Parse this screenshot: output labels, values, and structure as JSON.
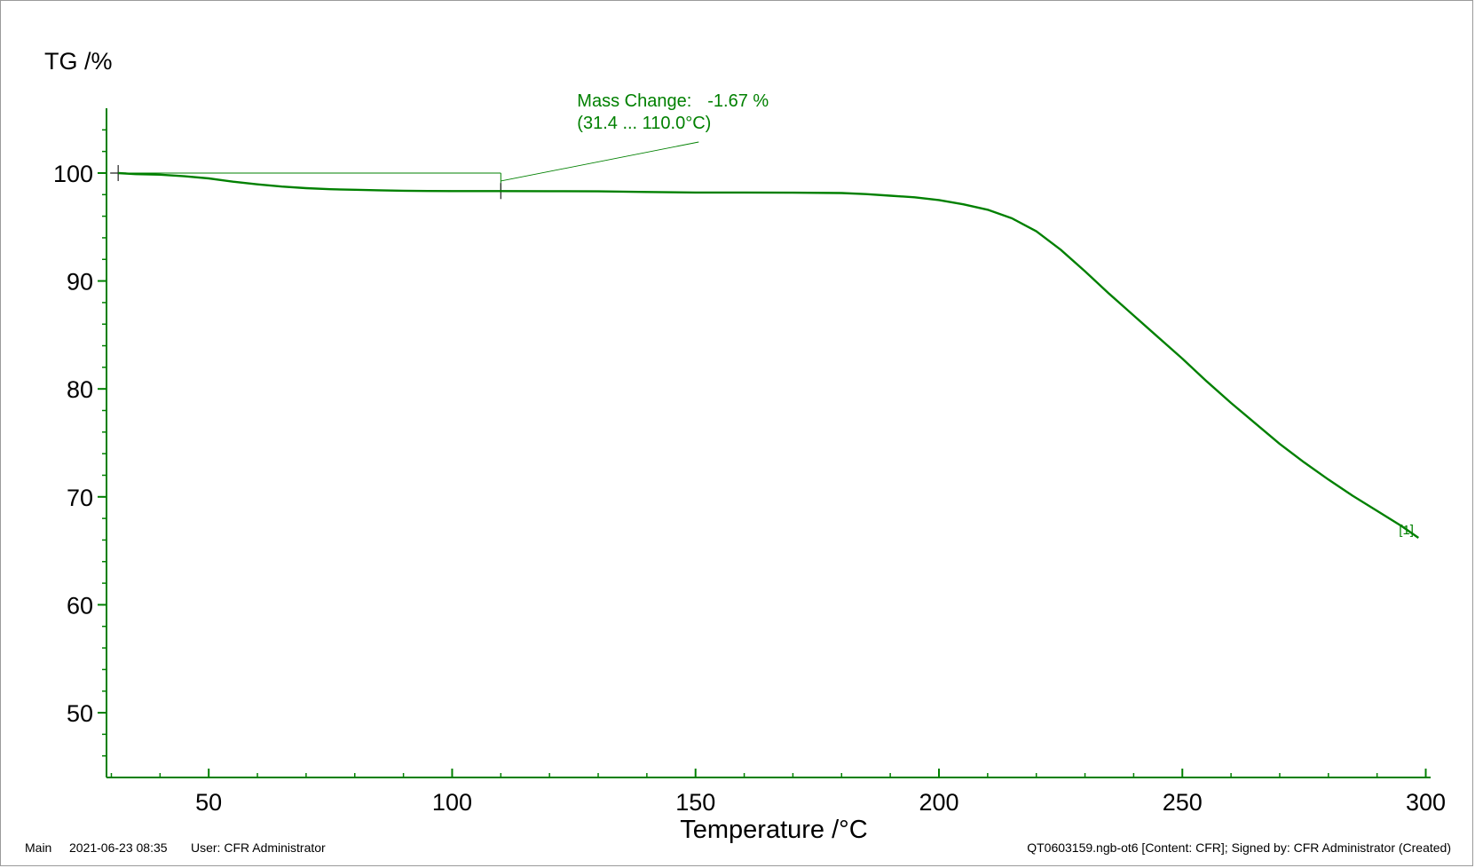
{
  "chart_data": {
    "type": "line",
    "ylabel": "TG /%",
    "xlabel": "Temperature /°C",
    "xlim": [
      29,
      301
    ],
    "ylim": [
      44,
      106
    ],
    "x_ticks": [
      50,
      100,
      150,
      200,
      250,
      300
    ],
    "y_ticks": [
      50,
      60,
      70,
      80,
      90,
      100
    ],
    "x_minor_step": 10,
    "y_minor_step": 2,
    "grid": false,
    "series": [
      {
        "name": "",
        "curve_label": "[1]",
        "color": "#008000",
        "x": [
          31.4,
          35,
          40,
          45,
          50,
          55,
          60,
          65,
          70,
          75,
          80,
          85,
          90,
          95,
          100,
          105,
          110,
          120,
          130,
          140,
          150,
          160,
          170,
          180,
          185,
          190,
          195,
          200,
          205,
          210,
          215,
          220,
          225,
          230,
          235,
          240,
          245,
          250,
          255,
          260,
          265,
          270,
          275,
          280,
          285,
          290,
          295,
          298.5
        ],
        "y": [
          100.0,
          99.9,
          99.85,
          99.7,
          99.5,
          99.2,
          98.95,
          98.75,
          98.6,
          98.5,
          98.45,
          98.4,
          98.36,
          98.34,
          98.33,
          98.33,
          98.33,
          98.32,
          98.3,
          98.25,
          98.2,
          98.2,
          98.18,
          98.15,
          98.05,
          97.9,
          97.75,
          97.5,
          97.1,
          96.6,
          95.8,
          94.6,
          92.9,
          90.9,
          88.8,
          86.8,
          84.8,
          82.8,
          80.7,
          78.7,
          76.8,
          74.9,
          73.2,
          71.6,
          70.1,
          68.7,
          67.3,
          66.2
        ]
      }
    ],
    "annotation": {
      "line1_label": "Mass Change:",
      "line1_value": "-1.67 %",
      "line2": "(31.4 ... 110.0°C)",
      "color": "#008000",
      "start": {
        "x": 31.4,
        "y": 100.0
      },
      "end": {
        "x": 110.0,
        "y": 98.33
      }
    }
  },
  "footer": {
    "segment": "Main",
    "datetime": "2021-06-23 08:35",
    "user": "User: CFR Administrator",
    "file_info": "QT0603159.ngb-ot6 [Content: CFR]; Signed by: CFR Administrator (Created)"
  }
}
